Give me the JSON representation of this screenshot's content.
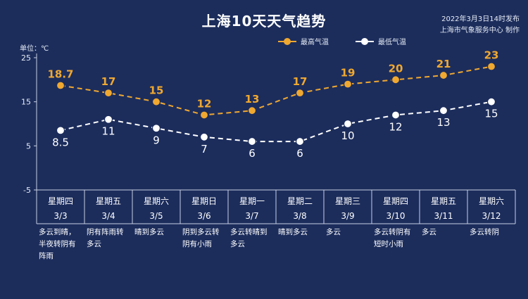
{
  "header": {
    "title": "上海10天天气趋势",
    "publish_time": "2022年3月3日14时发布",
    "publisher": "上海市气象服务中心 制作",
    "unit_label": "单位：℃"
  },
  "colors": {
    "background": "#1c2d5c",
    "high": "#f0a830",
    "low": "#ffffff",
    "high_label": "#f0a830",
    "low_label": "#ffffff"
  },
  "chart_data": {
    "type": "line",
    "title": "上海10天天气趋势",
    "ylabel": "单位：℃",
    "ylim": [
      -5,
      25
    ],
    "yticks": [
      25,
      15,
      5,
      -5
    ],
    "categories": [
      "星期四 3/3",
      "星期五 3/4",
      "星期六 3/5",
      "星期日 3/6",
      "星期一 3/7",
      "星期二 3/8",
      "星期三 3/9",
      "星期四 3/10",
      "星期五 3/11",
      "星期六 3/12"
    ],
    "days": [
      {
        "weekday": "星期四",
        "date": "3/3"
      },
      {
        "weekday": "星期五",
        "date": "3/4"
      },
      {
        "weekday": "星期六",
        "date": "3/5"
      },
      {
        "weekday": "星期日",
        "date": "3/6"
      },
      {
        "weekday": "星期一",
        "date": "3/7"
      },
      {
        "weekday": "星期二",
        "date": "3/8"
      },
      {
        "weekday": "星期三",
        "date": "3/9"
      },
      {
        "weekday": "星期四",
        "date": "3/10"
      },
      {
        "weekday": "星期五",
        "date": "3/11"
      },
      {
        "weekday": "星期六",
        "date": "3/12"
      }
    ],
    "series": [
      {
        "name": "最高气温",
        "values": [
          18.7,
          17,
          15,
          12,
          13,
          17,
          19,
          20,
          21,
          23
        ],
        "labels": [
          "18.7",
          "17",
          "15",
          "12",
          "13",
          "17",
          "19",
          "20",
          "21",
          "23"
        ]
      },
      {
        "name": "最低气温",
        "values": [
          8.5,
          11,
          9,
          7,
          6,
          6,
          10,
          12,
          13,
          15
        ],
        "labels": [
          "8.5",
          "11",
          "9",
          "7",
          "6",
          "6",
          "10",
          "12",
          "13",
          "15"
        ]
      }
    ],
    "legend_position": "top-right",
    "grid": false
  },
  "weather": [
    "多云到晴，\n半夜转阴有\n阵雨",
    "阴有阵雨转\n多云",
    "晴到多云",
    "阴到多云转\n阴有小雨",
    "多云转晴到\n多云",
    "晴到多云",
    "多云",
    "多云转阴有\n短时小雨",
    "多云",
    "多云转阴"
  ]
}
